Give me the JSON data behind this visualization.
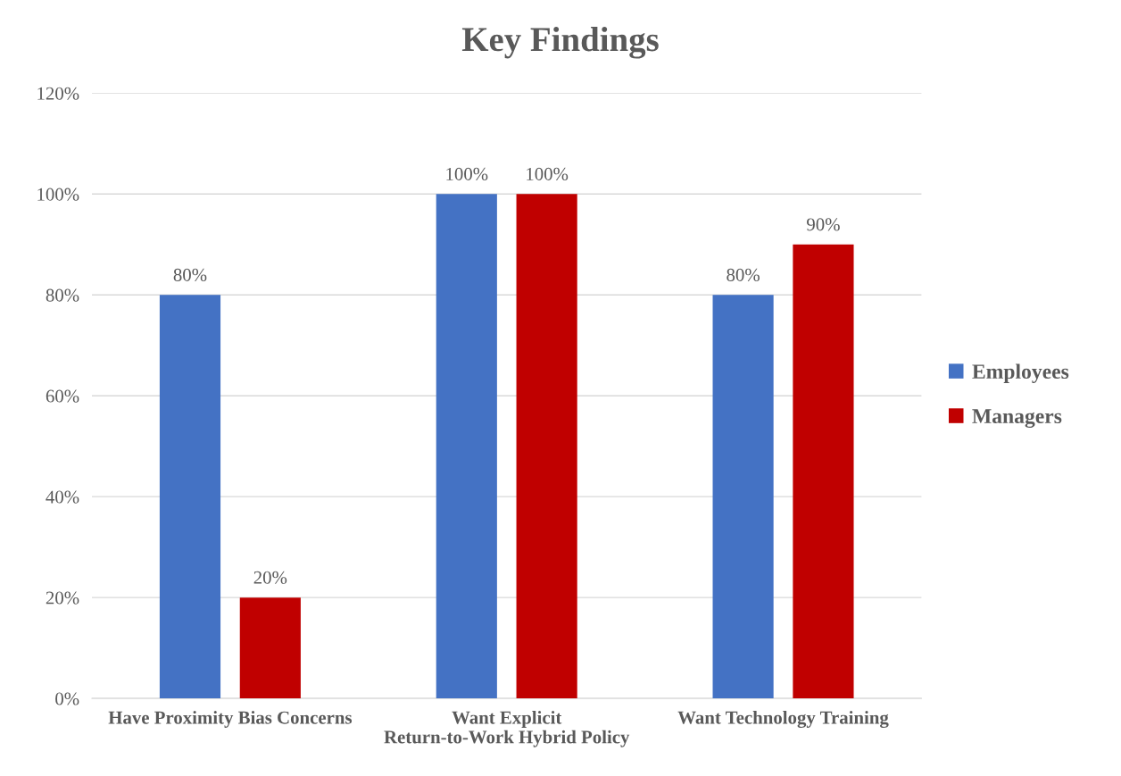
{
  "chart_data": {
    "type": "bar",
    "title": "Key Findings",
    "categories": [
      "Have Proximity Bias Concerns",
      "Want Explicit Return-to-Work Hybrid Policy",
      "Want Technology Training"
    ],
    "series": [
      {
        "name": "Employees",
        "color": "#4472c4",
        "values": [
          80,
          100,
          80
        ],
        "value_labels": [
          "80%",
          "100%",
          "80%"
        ]
      },
      {
        "name": "Managers",
        "color": "#c00000",
        "values": [
          20,
          100,
          90
        ],
        "value_labels": [
          "20%",
          "100%",
          "90%"
        ]
      }
    ],
    "ylim": [
      0,
      120
    ],
    "yticks": [
      {
        "value": 0,
        "label": "0%"
      },
      {
        "value": 20,
        "label": "20%"
      },
      {
        "value": 40,
        "label": "40%"
      },
      {
        "value": 60,
        "label": "60%"
      },
      {
        "value": 80,
        "label": "80%"
      },
      {
        "value": 100,
        "label": "100%"
      },
      {
        "value": 120,
        "label": "120%"
      }
    ],
    "grid": "y",
    "legend": "right"
  }
}
